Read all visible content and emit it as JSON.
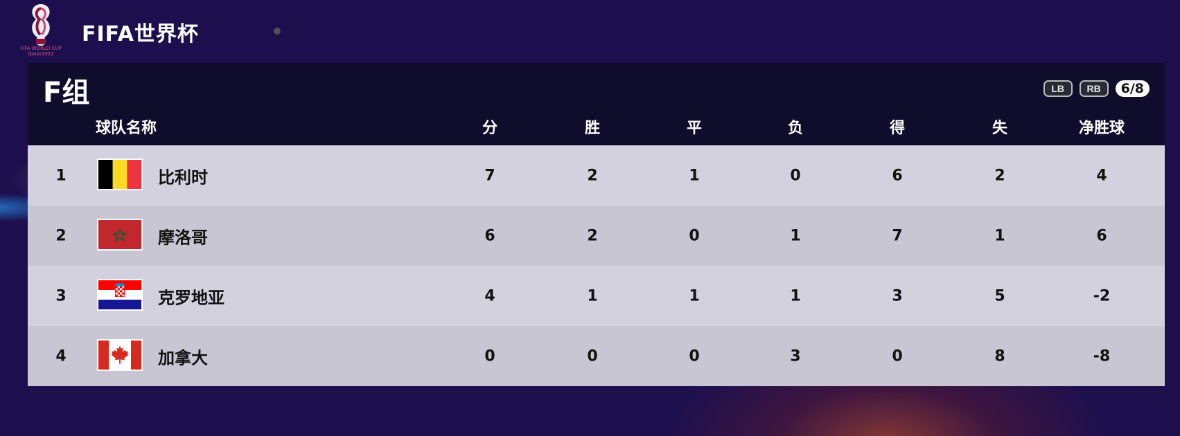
{
  "app": {
    "title": "FIFA世界杯",
    "logo_caption": "FIFA WORLD CUP Qatar2022"
  },
  "group": {
    "title": "F组",
    "pager": {
      "prev_label": "LB",
      "next_label": "RB",
      "page": "6/8"
    }
  },
  "table": {
    "headers": {
      "team": "球队名称",
      "points": "分",
      "wins": "胜",
      "draws": "平",
      "losses": "负",
      "goals_for": "得",
      "goals_against": "失",
      "goal_diff": "净胜球"
    },
    "rows": [
      {
        "rank": "1",
        "team": "比利时",
        "flag": "belgium-flag-icon",
        "points": "7",
        "wins": "2",
        "draws": "1",
        "losses": "0",
        "goals_for": "6",
        "goals_against": "2",
        "goal_diff": "4"
      },
      {
        "rank": "2",
        "team": "摩洛哥",
        "flag": "morocco-flag-icon",
        "points": "6",
        "wins": "2",
        "draws": "0",
        "losses": "1",
        "goals_for": "7",
        "goals_against": "1",
        "goal_diff": "6"
      },
      {
        "rank": "3",
        "team": "克罗地亚",
        "flag": "croatia-flag-icon",
        "points": "4",
        "wins": "1",
        "draws": "1",
        "losses": "1",
        "goals_for": "3",
        "goals_against": "5",
        "goal_diff": "-2"
      },
      {
        "rank": "4",
        "team": "加拿大",
        "flag": "canada-flag-icon",
        "points": "0",
        "wins": "0",
        "draws": "0",
        "losses": "3",
        "goals_for": "0",
        "goals_against": "8",
        "goal_diff": "-8"
      }
    ]
  },
  "colors": {
    "background": "#1d0f4e",
    "header_bar": "#0f0d2b",
    "row_light": "#d3d1de",
    "row_dark": "#c8c6d3"
  }
}
